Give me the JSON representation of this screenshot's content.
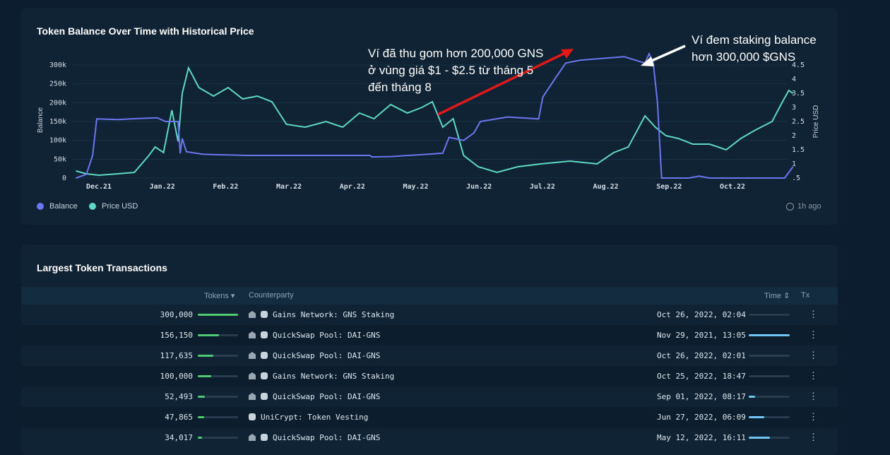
{
  "chart": {
    "title": "Token Balance Over Time with Historical Price",
    "left_axis_label": "Balance",
    "right_axis_label": "Price USD",
    "legend": [
      {
        "label": "Balance",
        "color": "#6b76f0"
      },
      {
        "label": "Price USD",
        "color": "#5fd8c3"
      }
    ],
    "updated": "1h ago"
  },
  "chart_data": {
    "type": "line",
    "xlabel": "",
    "x_ticks": [
      "Dec.21",
      "Jan.22",
      "Feb.22",
      "Mar.22",
      "Apr.22",
      "May.22",
      "Jun.22",
      "Jul.22",
      "Aug.22",
      "Sep.22",
      "Oct.22"
    ],
    "y_left": {
      "label": "Balance",
      "ticks": [
        "0",
        "50k",
        "100k",
        "150k",
        "200k",
        "250k",
        "300k"
      ],
      "range": [
        0,
        300000
      ]
    },
    "y_right": {
      "label": "Price USD",
      "ticks": [
        ".5",
        "1",
        "1.5",
        "2",
        "2.5",
        "3",
        "3.5",
        "4",
        "4.5"
      ],
      "range": [
        0.5,
        4.5
      ]
    },
    "series": [
      {
        "name": "Balance",
        "color": "#6b76f0",
        "points": [
          [
            "2021-11-20",
            0
          ],
          [
            "2021-11-25",
            10000
          ],
          [
            "2021-11-28",
            60000
          ],
          [
            "2021-11-30",
            157000
          ],
          [
            "2021-12-10",
            155000
          ],
          [
            "2021-12-20",
            158000
          ],
          [
            "2021-12-29",
            160000
          ],
          [
            "2022-01-02",
            150000
          ],
          [
            "2022-01-08",
            150000
          ],
          [
            "2022-01-09",
            65000
          ],
          [
            "2022-01-10",
            105000
          ],
          [
            "2022-01-12",
            70000
          ],
          [
            "2022-01-20",
            63000
          ],
          [
            "2022-02-10",
            60000
          ],
          [
            "2022-03-20",
            60000
          ],
          [
            "2022-04-10",
            60000
          ],
          [
            "2022-04-11",
            56000
          ],
          [
            "2022-04-20",
            57000
          ],
          [
            "2022-05-10",
            64000
          ],
          [
            "2022-05-15",
            66000
          ],
          [
            "2022-05-18",
            108000
          ],
          [
            "2022-05-25",
            100000
          ],
          [
            "2022-05-30",
            120000
          ],
          [
            "2022-06-02",
            150000
          ],
          [
            "2022-06-15",
            162000
          ],
          [
            "2022-06-30",
            157000
          ],
          [
            "2022-07-02",
            215000
          ],
          [
            "2022-07-08",
            265000
          ],
          [
            "2022-07-13",
            305000
          ],
          [
            "2022-07-20",
            313000
          ],
          [
            "2022-08-10",
            322000
          ],
          [
            "2022-08-20",
            305000
          ],
          [
            "2022-08-22",
            330000
          ],
          [
            "2022-08-24",
            305000
          ],
          [
            "2022-08-26",
            200000
          ],
          [
            "2022-08-28",
            0
          ],
          [
            "2022-09-10",
            0
          ],
          [
            "2022-09-15",
            5000
          ],
          [
            "2022-09-20",
            0
          ],
          [
            "2022-10-10",
            0
          ],
          [
            "2022-10-26",
            0
          ],
          [
            "2022-10-30",
            30000
          ]
        ]
      },
      {
        "name": "Price USD",
        "color": "#5fd8c3",
        "points": [
          [
            "2021-11-20",
            0.75
          ],
          [
            "2021-11-25",
            0.65
          ],
          [
            "2021-12-01",
            0.6
          ],
          [
            "2021-12-10",
            0.65
          ],
          [
            "2021-12-18",
            0.7
          ],
          [
            "2021-12-25",
            1.3
          ],
          [
            "2021-12-28",
            1.6
          ],
          [
            "2022-01-01",
            1.4
          ],
          [
            "2022-01-05",
            2.9
          ],
          [
            "2022-01-08",
            1.8
          ],
          [
            "2022-01-10",
            3.5
          ],
          [
            "2022-01-13",
            4.4
          ],
          [
            "2022-01-18",
            3.7
          ],
          [
            "2022-01-25",
            3.4
          ],
          [
            "2022-02-01",
            3.7
          ],
          [
            "2022-02-08",
            3.3
          ],
          [
            "2022-02-15",
            3.4
          ],
          [
            "2022-02-22",
            3.2
          ],
          [
            "2022-03-01",
            2.4
          ],
          [
            "2022-03-10",
            2.3
          ],
          [
            "2022-03-20",
            2.5
          ],
          [
            "2022-03-28",
            2.3
          ],
          [
            "2022-04-05",
            2.8
          ],
          [
            "2022-04-12",
            2.6
          ],
          [
            "2022-04-20",
            3.1
          ],
          [
            "2022-04-28",
            2.8
          ],
          [
            "2022-05-05",
            3.0
          ],
          [
            "2022-05-10",
            3.2
          ],
          [
            "2022-05-15",
            2.3
          ],
          [
            "2022-05-20",
            2.6
          ],
          [
            "2022-05-25",
            1.3
          ],
          [
            "2022-06-01",
            0.9
          ],
          [
            "2022-06-10",
            0.7
          ],
          [
            "2022-06-20",
            0.9
          ],
          [
            "2022-07-01",
            1.0
          ],
          [
            "2022-07-15",
            1.1
          ],
          [
            "2022-07-28",
            1.0
          ],
          [
            "2022-08-05",
            1.4
          ],
          [
            "2022-08-12",
            1.6
          ],
          [
            "2022-08-20",
            2.7
          ],
          [
            "2022-08-25",
            2.3
          ],
          [
            "2022-08-30",
            2.0
          ],
          [
            "2022-09-05",
            1.9
          ],
          [
            "2022-09-12",
            1.7
          ],
          [
            "2022-09-20",
            1.7
          ],
          [
            "2022-09-28",
            1.5
          ],
          [
            "2022-10-05",
            1.9
          ],
          [
            "2022-10-12",
            2.2
          ],
          [
            "2022-10-20",
            2.5
          ],
          [
            "2022-10-25",
            3.2
          ],
          [
            "2022-10-28",
            3.6
          ],
          [
            "2022-10-30",
            3.5
          ]
        ]
      }
    ]
  },
  "annotations": {
    "note1": [
      "Ví đã thu gom hơn 200,000 GNS",
      "ở vùng giá $1 - $2.5 từ tháng 5",
      "đến tháng 8"
    ],
    "note2": [
      "Ví đem staking balance",
      "hơn 300,000 $GNS"
    ]
  },
  "table": {
    "title": "Largest Token Transactions",
    "headers": {
      "tokens": "Tokens",
      "counterparty": "Counterparty",
      "time": "Time",
      "tx": "Tx"
    },
    "rows": [
      {
        "tokens": "300,000",
        "share": 1.0,
        "icons": [
          "bank",
          "robot"
        ],
        "counterparty": "Gains Network: GNS Staking",
        "time": "Oct 26, 2022, 02:04",
        "recency": 0.0
      },
      {
        "tokens": "156,150",
        "share": 0.52,
        "icons": [
          "bank",
          "robot"
        ],
        "counterparty": "QuickSwap Pool: DAI-GNS",
        "time": "Nov 29, 2021, 13:05",
        "recency": 1.0
      },
      {
        "tokens": "117,635",
        "share": 0.39,
        "icons": [
          "bank",
          "robot"
        ],
        "counterparty": "QuickSwap Pool: DAI-GNS",
        "time": "Oct 26, 2022, 02:01",
        "recency": 0.0
      },
      {
        "tokens": "100,000",
        "share": 0.33,
        "icons": [
          "bank",
          "robot"
        ],
        "counterparty": "Gains Network: GNS Staking",
        "time": "Oct 25, 2022, 18:47",
        "recency": 0.0
      },
      {
        "tokens": "52,493",
        "share": 0.17,
        "icons": [
          "bank",
          "robot"
        ],
        "counterparty": "QuickSwap Pool: DAI-GNS",
        "time": "Sep 01, 2022, 08:17",
        "recency": 0.16
      },
      {
        "tokens": "47,865",
        "share": 0.16,
        "icons": [
          "robot"
        ],
        "counterparty": "UniCrypt: Token Vesting",
        "time": "Jun 27, 2022, 06:09",
        "recency": 0.38
      },
      {
        "tokens": "34,017",
        "share": 0.11,
        "icons": [
          "bank",
          "robot"
        ],
        "counterparty": "QuickSwap Pool: DAI-GNS",
        "time": "May 12, 2022, 16:11",
        "recency": 0.52
      }
    ]
  }
}
